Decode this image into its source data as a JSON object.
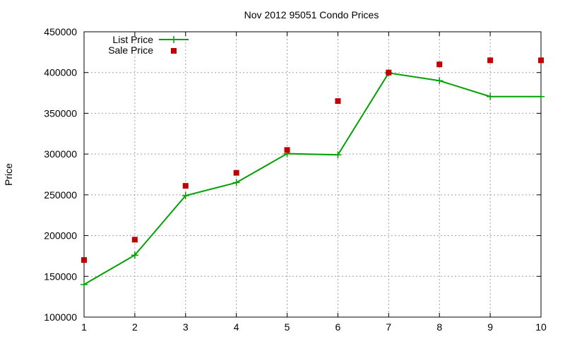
{
  "chart_data": {
    "type": "line",
    "title": "Nov 2012 95051 Condo Prices",
    "xlabel": "",
    "ylabel": "Price",
    "x": [
      1,
      2,
      3,
      4,
      5,
      6,
      7,
      8,
      9,
      10
    ],
    "xlim": [
      1,
      10
    ],
    "ylim": [
      100000,
      450000
    ],
    "xticks": [
      "1",
      "2",
      "3",
      "4",
      "5",
      "6",
      "7",
      "8",
      "9",
      "10"
    ],
    "yticks": [
      "100000",
      "150000",
      "200000",
      "250000",
      "300000",
      "350000",
      "400000",
      "450000"
    ],
    "grid": true,
    "legend_position": "top-left",
    "series": [
      {
        "name": "List Price",
        "style": "line-with-plus-markers",
        "color": "#00a000",
        "values": [
          140000,
          176000,
          249000,
          265000,
          300500,
          299000,
          399500,
          390000,
          370500,
          370500
        ]
      },
      {
        "name": "Sale Price",
        "style": "square-markers",
        "color": "#c00000",
        "values": [
          170000,
          195000,
          261000,
          277000,
          305000,
          365000,
          400000,
          410000,
          415000,
          415000
        ]
      }
    ]
  }
}
